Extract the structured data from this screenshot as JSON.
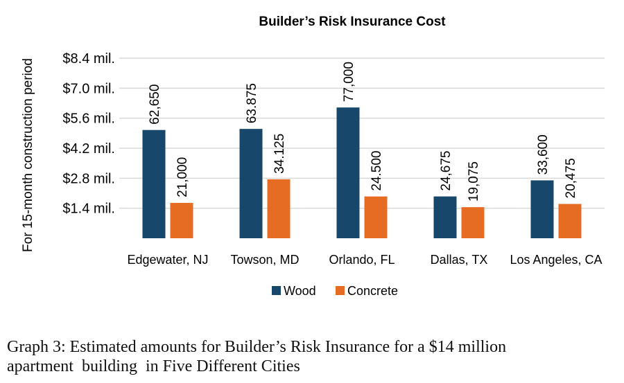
{
  "chart_data": {
    "type": "bar",
    "title": "Builder’s Risk Insurance Cost",
    "ylabel": "For 15-month construction period",
    "xlabel": "",
    "categories": [
      "Edgewater, NJ",
      "Towson, MD",
      "Orlando, FL",
      "Dallas, TX",
      "Los Angeles, CA"
    ],
    "series": [
      {
        "name": "Wood",
        "color": "#17476b",
        "values": [
          5.05,
          5.1,
          6.1,
          1.95,
          2.7
        ],
        "labels": [
          "62,650",
          "63.875",
          "77,000",
          "24,675",
          "33,600"
        ]
      },
      {
        "name": "Concrete",
        "color": "#e66c24",
        "values": [
          1.65,
          2.75,
          1.95,
          1.45,
          1.6
        ],
        "labels": [
          "21,000",
          "34.125",
          "24.500",
          "19,075",
          "20,475"
        ]
      }
    ],
    "ylim": [
      0,
      8.4
    ],
    "y_ticks": [
      {
        "value": 1.4,
        "label": "$1.4 mil."
      },
      {
        "value": 2.8,
        "label": "$2.8 mil."
      },
      {
        "value": 4.2,
        "label": "$4.2 mil."
      },
      {
        "value": 5.6,
        "label": "$5.6 mil."
      },
      {
        "value": 7.0,
        "label": "$7.0 mil."
      },
      {
        "value": 8.4,
        "label": "$8.4 mil."
      }
    ],
    "grid": true,
    "legend_position": "bottom",
    "colors": {
      "grid": "#d9d9d9",
      "text": "#000000"
    }
  },
  "caption": {
    "line1": "Graph 3: Estimated amounts for Builder’s Risk Insurance for a $14 million",
    "line2": "apartment  building  in Five Different Cities"
  }
}
